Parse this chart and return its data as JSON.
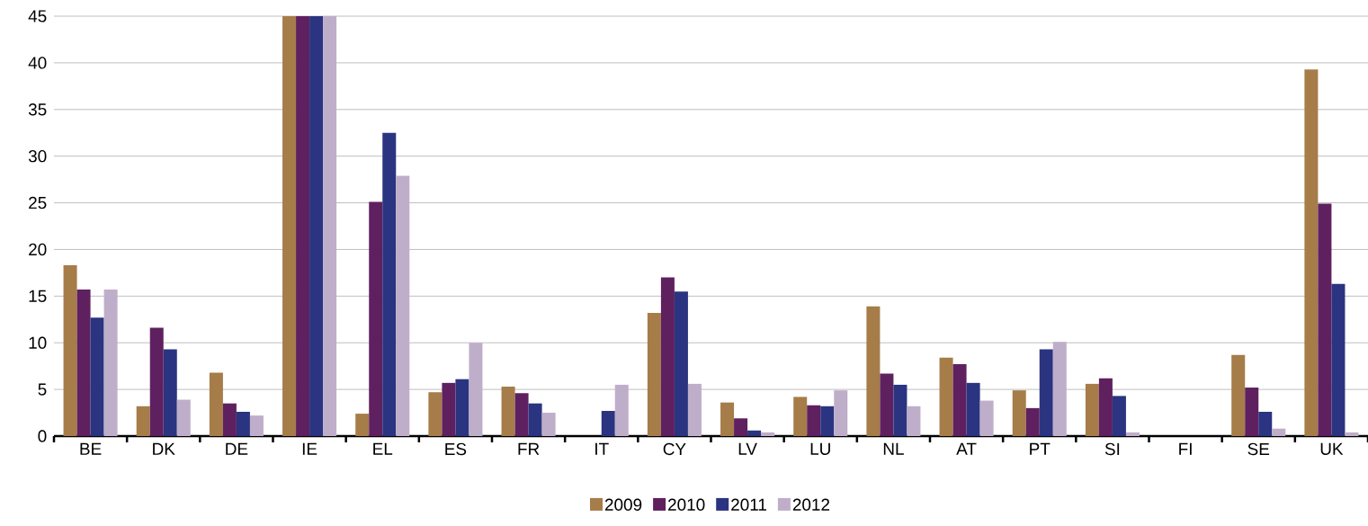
{
  "chart_data": {
    "type": "bar",
    "categories": [
      "BE",
      "DK",
      "DE",
      "IE",
      "EL",
      "ES",
      "FR",
      "IT",
      "CY",
      "LV",
      "LU",
      "NL",
      "AT",
      "PT",
      "SI",
      "FI",
      "SE",
      "UK"
    ],
    "series": [
      {
        "name": "2009",
        "color": "#a67c49",
        "values": [
          18.3,
          3.2,
          6.8,
          45,
          2.4,
          4.7,
          5.3,
          null,
          13.2,
          3.6,
          4.2,
          13.9,
          8.4,
          4.9,
          5.6,
          null,
          8.7,
          39.3
        ]
      },
      {
        "name": "2010",
        "color": "#5f2060",
        "values": [
          15.7,
          11.6,
          3.5,
          45,
          25.1,
          5.7,
          4.6,
          null,
          17.0,
          1.9,
          3.3,
          6.7,
          7.7,
          3.0,
          6.2,
          null,
          5.2,
          24.9
        ]
      },
      {
        "name": "2011",
        "color": "#2b3480",
        "values": [
          12.7,
          9.3,
          2.6,
          45,
          32.5,
          6.1,
          3.5,
          2.7,
          15.5,
          0.6,
          3.2,
          5.5,
          5.7,
          9.3,
          4.3,
          null,
          2.6,
          16.3
        ]
      },
      {
        "name": "2012",
        "color": "#bfaec9",
        "values": [
          15.7,
          3.9,
          2.2,
          45,
          27.9,
          10.0,
          2.5,
          5.5,
          5.6,
          0.4,
          4.9,
          3.2,
          3.8,
          10.1,
          0.4,
          null,
          0.8,
          0.4
        ]
      }
    ],
    "ylim": [
      0,
      45
    ],
    "yticks": [
      0,
      5,
      10,
      15,
      20,
      25,
      30,
      35,
      40,
      45
    ],
    "grid": "y",
    "legend": "bottom"
  }
}
